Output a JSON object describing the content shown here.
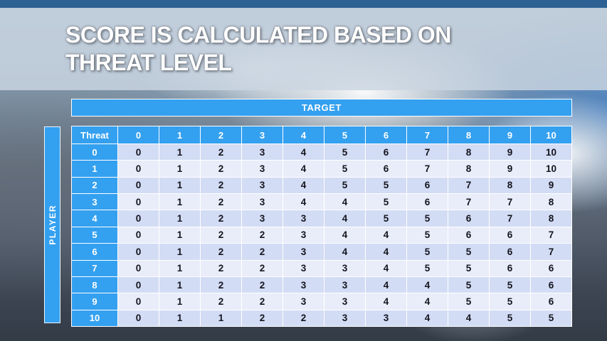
{
  "slide": {
    "title_line1": "SCORE IS CALCULATED BASED ON",
    "title_line2": "THREAT LEVEL"
  },
  "table": {
    "target_label": "TARGET",
    "player_label": "PLAYER",
    "corner_label": "Threat",
    "column_headers": [
      "0",
      "1",
      "2",
      "3",
      "4",
      "5",
      "6",
      "7",
      "8",
      "9",
      "10"
    ],
    "row_headers": [
      "0",
      "1",
      "2",
      "3",
      "4",
      "5",
      "6",
      "7",
      "8",
      "9",
      "10"
    ],
    "rows": [
      [
        0,
        1,
        2,
        3,
        4,
        5,
        6,
        7,
        8,
        9,
        10
      ],
      [
        0,
        1,
        2,
        3,
        4,
        5,
        6,
        7,
        8,
        9,
        10
      ],
      [
        0,
        1,
        2,
        3,
        4,
        5,
        5,
        6,
        7,
        8,
        9
      ],
      [
        0,
        1,
        2,
        3,
        4,
        4,
        5,
        6,
        7,
        7,
        8
      ],
      [
        0,
        1,
        2,
        3,
        3,
        4,
        5,
        5,
        6,
        7,
        8
      ],
      [
        0,
        1,
        2,
        2,
        3,
        4,
        4,
        5,
        6,
        6,
        7
      ],
      [
        0,
        1,
        2,
        2,
        3,
        4,
        4,
        5,
        5,
        6,
        7
      ],
      [
        0,
        1,
        2,
        2,
        3,
        3,
        4,
        5,
        5,
        6,
        6
      ],
      [
        0,
        1,
        2,
        2,
        3,
        3,
        4,
        4,
        5,
        5,
        6
      ],
      [
        0,
        1,
        2,
        2,
        3,
        3,
        4,
        4,
        5,
        5,
        6
      ],
      [
        0,
        1,
        1,
        2,
        2,
        3,
        3,
        4,
        4,
        5,
        5
      ]
    ]
  },
  "colors": {
    "accent_blue": "#34a0f0",
    "stripe_dark": "#d2dcf4",
    "stripe_light": "#e9edfa",
    "cell_text": "#14141e",
    "title_text": "#ffffff",
    "title_band": "#cbd6e2",
    "top_strip": "#2d6093"
  }
}
